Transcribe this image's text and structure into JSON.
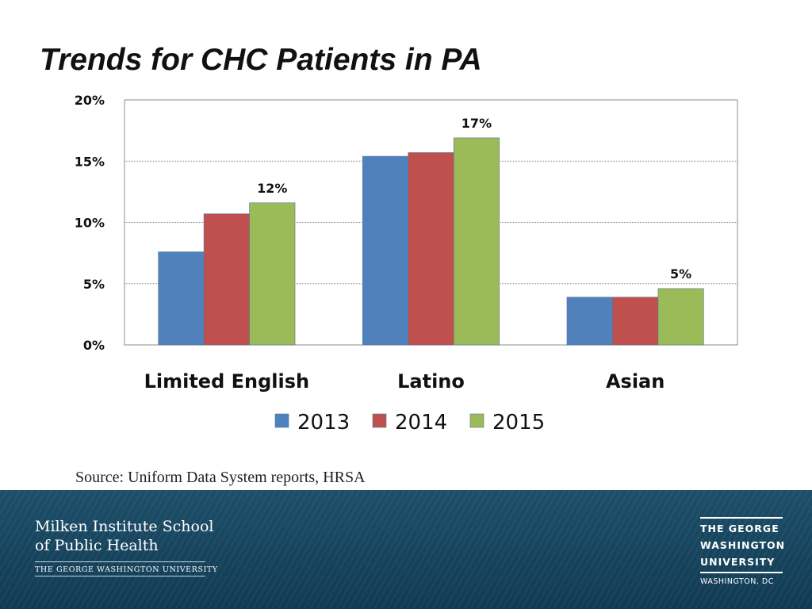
{
  "slide": {
    "title": "Trends for CHC Patients in PA",
    "source": "Source: Uniform Data System reports, HRSA"
  },
  "chart_data": {
    "type": "bar",
    "title": "",
    "xlabel": "",
    "ylabel": "",
    "ylim": [
      0,
      20
    ],
    "yticks": [
      {
        "value": 0,
        "label": "0%"
      },
      {
        "value": 5,
        "label": "5%"
      },
      {
        "value": 10,
        "label": "10%"
      },
      {
        "value": 15,
        "label": "15%"
      },
      {
        "value": 20,
        "label": "20%"
      }
    ],
    "grid": true,
    "categories": [
      "Limited English",
      "Latino",
      "Asian"
    ],
    "series": [
      {
        "name": "2013",
        "color": "#4f81bd",
        "values": [
          7.6,
          15.4,
          3.9
        ]
      },
      {
        "name": "2014",
        "color": "#c0504d",
        "values": [
          10.7,
          15.7,
          3.9
        ]
      },
      {
        "name": "2015",
        "color": "#9bbb59",
        "values": [
          11.6,
          16.9,
          4.6
        ]
      }
    ],
    "data_labels": [
      {
        "category": "Limited English",
        "series": "2015",
        "text": "12%"
      },
      {
        "category": "Latino",
        "series": "2015",
        "text": "17%"
      },
      {
        "category": "Asian",
        "series": "2015",
        "text": "5%"
      }
    ],
    "legend": "bottom"
  },
  "footer": {
    "school_line1": "Milken Institute School",
    "school_line2": "of Public Health",
    "school_line3": "THE GEORGE WASHINGTON UNIVERSITY",
    "gwu_line1": "THE GEORGE",
    "gwu_line2": "WASHINGTON",
    "gwu_line3": "UNIVERSITY",
    "gwu_city": "WASHINGTON, DC"
  }
}
